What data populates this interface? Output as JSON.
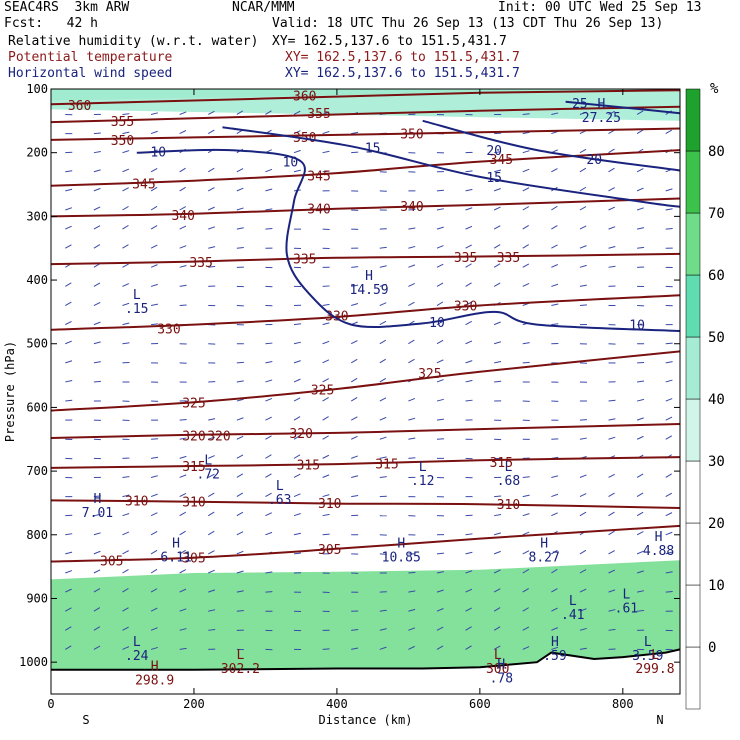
{
  "header": {
    "model": "SEAC4RS  3km ARW",
    "org": "NCAR/MMM",
    "init": "Init: 00 UTC Wed 25 Sep 13",
    "fcst": "Fcst:   42 h",
    "valid": "Valid: 18 UTC Thu 26 Sep 13 (13 CDT Thu 26 Sep 13)",
    "fields": [
      {
        "name": "Relative humidity (w.r.t. water)",
        "xy": "XY= 162.5,137.6 to 151.5,431.7",
        "color": "#000000"
      },
      {
        "name": "Potential temperature",
        "xy": "XY= 162.5,137.6 to 151.5,431.7",
        "color": "#8b1a1a"
      },
      {
        "name": "Horizontal wind speed",
        "xy": "XY= 162.5,137.6 to 151.5,431.7",
        "color": "#1a237e"
      }
    ]
  },
  "chart_data": {
    "type": "cross-section",
    "xlabel": "Distance (km)",
    "ylabel": "Pressure (hPa)",
    "xlim": [
      0,
      880
    ],
    "ylim": [
      100,
      1050
    ],
    "y_scale": "linear, inverted",
    "x_ticks": [
      0,
      200,
      400,
      600,
      800
    ],
    "y_ticks": [
      100,
      200,
      300,
      400,
      500,
      600,
      700,
      800,
      900,
      1000
    ],
    "x_end_labels": {
      "left": "S",
      "right": "N"
    },
    "colorbar": {
      "unit": "%",
      "ticks": [
        0,
        10,
        20,
        30,
        40,
        50,
        60,
        70,
        80
      ],
      "colors": [
        "#ffffff",
        "#ffffff",
        "#ffffff",
        "#ffffff",
        "#d2f5ea",
        "#a6ecd4",
        "#5fdcb0",
        "#6fdc8a",
        "#3cc24a",
        "#1fa22d"
      ]
    },
    "theta_isentropes": [
      {
        "label": "360",
        "points": [
          [
            0,
            124
          ],
          [
            200,
            118
          ],
          [
            400,
            112
          ],
          [
            600,
            106
          ],
          [
            880,
            102
          ]
        ],
        "labels_at": [
          [
            40,
            125
          ],
          [
            355,
            110
          ]
        ]
      },
      {
        "label": "355",
        "points": [
          [
            0,
            152
          ],
          [
            200,
            146
          ],
          [
            400,
            140
          ],
          [
            600,
            134
          ],
          [
            880,
            128
          ]
        ],
        "labels_at": [
          [
            100,
            150
          ],
          [
            375,
            138
          ]
        ]
      },
      {
        "label": "350",
        "points": [
          [
            0,
            180
          ],
          [
            200,
            176
          ],
          [
            400,
            172
          ],
          [
            600,
            168
          ],
          [
            880,
            162
          ]
        ],
        "labels_at": [
          [
            100,
            180
          ],
          [
            355,
            175
          ],
          [
            505,
            170
          ]
        ]
      },
      {
        "label": "345",
        "points": [
          [
            0,
            252
          ],
          [
            200,
            244
          ],
          [
            400,
            232
          ],
          [
            600,
            214
          ],
          [
            880,
            196
          ]
        ],
        "labels_at": [
          [
            130,
            248
          ],
          [
            375,
            236
          ],
          [
            630,
            210
          ]
        ]
      },
      {
        "label": "340",
        "points": [
          [
            0,
            300
          ],
          [
            200,
            296
          ],
          [
            400,
            288
          ],
          [
            600,
            282
          ],
          [
            880,
            272
          ]
        ],
        "labels_at": [
          [
            185,
            298
          ],
          [
            375,
            288
          ],
          [
            505,
            284
          ]
        ]
      },
      {
        "label": "335",
        "points": [
          [
            0,
            375
          ],
          [
            200,
            371
          ],
          [
            400,
            365
          ],
          [
            600,
            363
          ],
          [
            880,
            359
          ]
        ],
        "labels_at": [
          [
            210,
            372
          ],
          [
            355,
            366
          ],
          [
            580,
            364
          ],
          [
            640,
            364
          ]
        ]
      },
      {
        "label": "330",
        "points": [
          [
            0,
            478
          ],
          [
            200,
            470
          ],
          [
            400,
            458
          ],
          [
            600,
            440
          ],
          [
            880,
            424
          ]
        ],
        "labels_at": [
          [
            165,
            476
          ],
          [
            400,
            456
          ],
          [
            580,
            440
          ]
        ]
      },
      {
        "label": "325",
        "points": [
          [
            0,
            605
          ],
          [
            200,
            592
          ],
          [
            400,
            571
          ],
          [
            600,
            544
          ],
          [
            880,
            512
          ]
        ],
        "labels_at": [
          [
            200,
            592
          ],
          [
            380,
            572
          ],
          [
            530,
            546
          ]
        ]
      },
      {
        "label": "320",
        "points": [
          [
            0,
            648
          ],
          [
            200,
            643
          ],
          [
            400,
            640
          ],
          [
            600,
            634
          ],
          [
            880,
            626
          ]
        ],
        "labels_at": [
          [
            200,
            644
          ],
          [
            235,
            644
          ],
          [
            350,
            640
          ]
        ]
      },
      {
        "label": "315",
        "points": [
          [
            0,
            695
          ],
          [
            200,
            692
          ],
          [
            400,
            689
          ],
          [
            600,
            683
          ],
          [
            880,
            678
          ]
        ],
        "labels_at": [
          [
            200,
            692
          ],
          [
            360,
            690
          ],
          [
            470,
            688
          ],
          [
            630,
            686
          ]
        ]
      },
      {
        "label": "310",
        "points": [
          [
            0,
            746
          ],
          [
            200,
            748
          ],
          [
            400,
            751
          ],
          [
            600,
            752
          ],
          [
            880,
            758
          ]
        ],
        "labels_at": [
          [
            120,
            746
          ],
          [
            200,
            748
          ],
          [
            390,
            750
          ],
          [
            640,
            752
          ]
        ]
      },
      {
        "label": "305",
        "points": [
          [
            0,
            842
          ],
          [
            200,
            836
          ],
          [
            400,
            822
          ],
          [
            600,
            806
          ],
          [
            880,
            786
          ]
        ],
        "labels_at": [
          [
            85,
            840
          ],
          [
            200,
            836
          ],
          [
            390,
            822
          ]
        ]
      }
    ],
    "wind_speed_contours": [
      {
        "label": "10",
        "points": [
          [
            120,
            200
          ],
          [
            250,
            196
          ],
          [
            350,
            214
          ],
          [
            340,
            276
          ],
          [
            330,
            360
          ],
          [
            360,
            420
          ],
          [
            420,
            470
          ],
          [
            520,
            468
          ],
          [
            620,
            450
          ],
          [
            680,
            470
          ],
          [
            880,
            480
          ]
        ],
        "labels_at": [
          [
            150,
            198
          ],
          [
            335,
            214
          ],
          [
            540,
            466
          ],
          [
            820,
            470
          ]
        ]
      },
      {
        "label": "15",
        "points": [
          [
            240,
            160
          ],
          [
            420,
            190
          ],
          [
            600,
            238
          ],
          [
            820,
            276
          ],
          [
            880,
            285
          ]
        ],
        "labels_at": [
          [
            450,
            192
          ],
          [
            620,
            238
          ]
        ]
      },
      {
        "label": "20",
        "points": [
          [
            520,
            150
          ],
          [
            680,
            196
          ],
          [
            880,
            228
          ]
        ],
        "labels_at": [
          [
            620,
            196
          ],
          [
            760,
            210
          ]
        ]
      },
      {
        "label": "25",
        "points": [
          [
            720,
            120
          ],
          [
            880,
            138
          ]
        ],
        "labels_at": [
          [
            740,
            122
          ]
        ]
      }
    ],
    "extrema": [
      {
        "type": "L",
        "value": ".15",
        "x": 120,
        "pressure": 430
      },
      {
        "type": "H",
        "value": "14.59",
        "x": 445,
        "pressure": 400
      },
      {
        "type": "H",
        "value": "27.25",
        "x": 770,
        "pressure": 130
      },
      {
        "type": "L",
        "value": ".72",
        "x": 220,
        "pressure": 690
      },
      {
        "type": "L",
        "value": ".63",
        "x": 320,
        "pressure": 730
      },
      {
        "type": "L",
        "value": ".12",
        "x": 520,
        "pressure": 700
      },
      {
        "type": "L",
        "value": ".68",
        "x": 640,
        "pressure": 700
      },
      {
        "type": "H",
        "value": "7.01",
        "x": 65,
        "pressure": 750
      },
      {
        "type": "H",
        "value": "6.11",
        "x": 175,
        "pressure": 820
      },
      {
        "type": "H",
        "value": "10.85",
        "x": 490,
        "pressure": 820
      },
      {
        "type": "H",
        "value": "8.27",
        "x": 690,
        "pressure": 820
      },
      {
        "type": "H",
        "value": "4.88",
        "x": 850,
        "pressure": 810
      },
      {
        "type": "L",
        "value": ".41",
        "x": 730,
        "pressure": 910
      },
      {
        "type": "L",
        "value": ".61",
        "x": 805,
        "pressure": 900
      },
      {
        "type": "L",
        "value": ".24",
        "x": 120,
        "pressure": 975
      },
      {
        "type": "L",
        "value": "302.2",
        "x": 265,
        "pressure": 995
      },
      {
        "type": "L",
        "value": "300",
        "x": 625,
        "pressure": 995
      },
      {
        "type": "H",
        "value": ".78",
        "x": 630,
        "pressure": 1010
      },
      {
        "type": "H",
        "value": ".59",
        "x": 705,
        "pressure": 975
      },
      {
        "type": "L",
        "value": "3.59",
        "x": 835,
        "pressure": 975
      },
      {
        "type": "L",
        "value": "299.8",
        "x": 845,
        "pressure": 995
      },
      {
        "type": "H",
        "value": "298.9",
        "x": 145,
        "pressure": 1013
      }
    ],
    "rh_fill": [
      {
        "level": 60,
        "band": [
          [
            0,
            118
          ],
          [
            880,
            100
          ]
        ],
        "color": "#5fdcb0"
      },
      {
        "level": 40,
        "band": [
          [
            0,
            132
          ],
          [
            880,
            150
          ]
        ],
        "color": "#a6ecd4"
      },
      {
        "level": 50,
        "region": "low-level moist layer",
        "top": [
          [
            0,
            870
          ],
          [
            200,
            860
          ],
          [
            400,
            858
          ],
          [
            600,
            855
          ],
          [
            880,
            840
          ]
        ],
        "bottom_pressure": 1015,
        "color": "#6fdc8a"
      }
    ],
    "surface_terrain": [
      [
        0,
        1012
      ],
      [
        200,
        1012
      ],
      [
        400,
        1010
      ],
      [
        520,
        1010
      ],
      [
        600,
        1008
      ],
      [
        680,
        1000
      ],
      [
        700,
        985
      ],
      [
        760,
        995
      ],
      [
        800,
        992
      ],
      [
        860,
        985
      ],
      [
        880,
        980
      ]
    ]
  }
}
